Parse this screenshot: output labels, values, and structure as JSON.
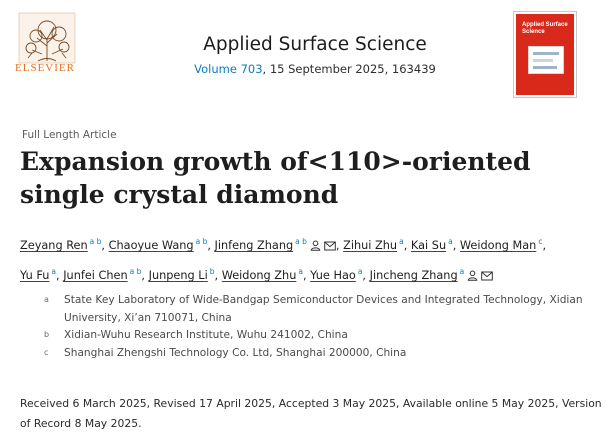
{
  "publisher": {
    "name": "ELSEVIER"
  },
  "journal": {
    "title": "Applied Surface Science",
    "volume": "Volume 703",
    "details": ", 15 September 2025, 163439",
    "cover_title": "Applied Surface Science"
  },
  "article": {
    "type": "Full Length Article",
    "title": "Expansion growth of<110>-oriented single crystal diamond"
  },
  "authors": [
    {
      "name": "Zeyang Ren",
      "sup": "a b",
      "icons": []
    },
    {
      "name": "Chaoyue Wang",
      "sup": "a b",
      "icons": []
    },
    {
      "name": "Jinfeng Zhang",
      "sup": "a b",
      "icons": [
        "person-icon",
        "email-icon"
      ]
    },
    {
      "name": "Zihui Zhu",
      "sup": "a",
      "icons": []
    },
    {
      "name": "Kai Su",
      "sup": "a",
      "icons": []
    },
    {
      "name": "Weidong Man",
      "sup": "c",
      "icons": []
    },
    {
      "name": "Yu Fu",
      "sup": "a",
      "icons": []
    },
    {
      "name": "Junfei Chen",
      "sup": "a b",
      "icons": []
    },
    {
      "name": "Junpeng Li",
      "sup": "b",
      "icons": []
    },
    {
      "name": "Weidong Zhu",
      "sup": "a",
      "icons": []
    },
    {
      "name": "Yue Hao",
      "sup": "a",
      "icons": []
    },
    {
      "name": "Jincheng Zhang",
      "sup": "a",
      "icons": [
        "person-icon",
        "email-icon"
      ]
    }
  ],
  "affiliations": [
    {
      "label": "a",
      "text": "State Key Laboratory of Wide-Bandgap Semiconductor Devices and Integrated Technology, Xidian University, Xi’an 710071, China"
    },
    {
      "label": "b",
      "text": "Xidian-Wuhu Research Institute, Wuhu 241002, China"
    },
    {
      "label": "c",
      "text": "Shanghai Zhengshi Technology Co. Ltd, Shanghai 200000, China"
    }
  ],
  "history": "Received 6 March 2025, Revised 17 April 2025, Accepted 3 May 2025, Available online 5 May 2025, Version of Record 8 May 2025.",
  "colors": {
    "link": "#0c7dbb",
    "elsevier": "#e9711c",
    "cover": "#d8291b"
  }
}
